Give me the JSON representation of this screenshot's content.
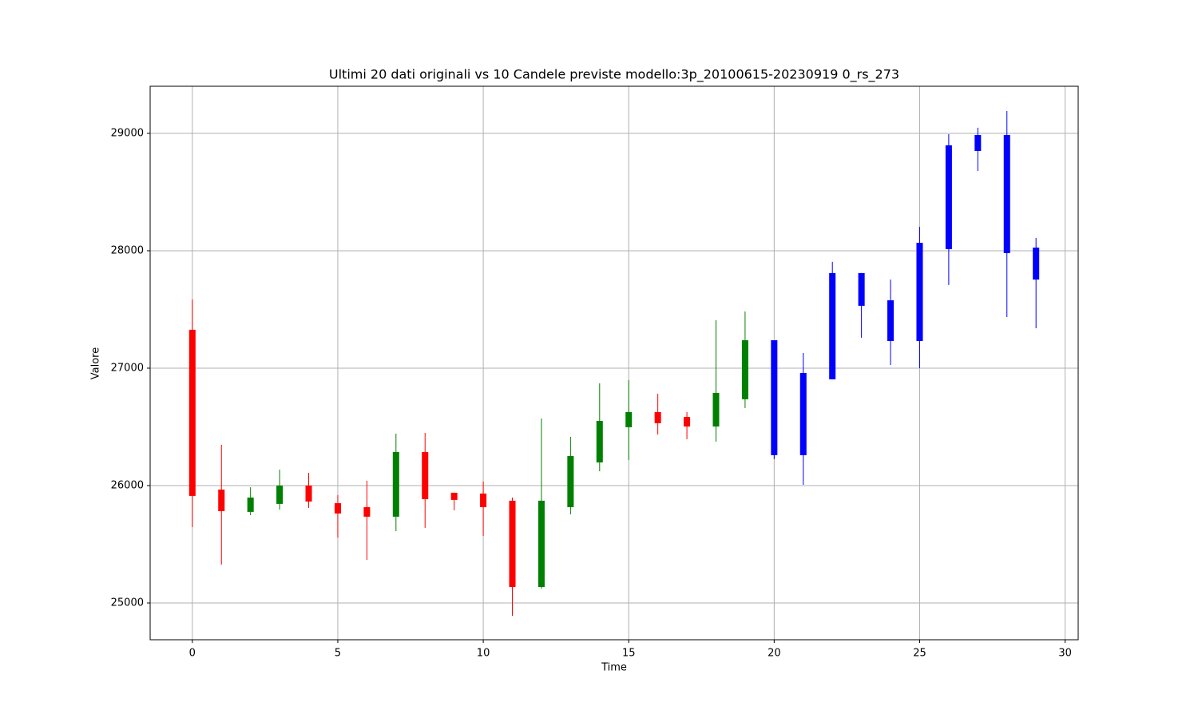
{
  "chart_data": {
    "type": "candlestick",
    "title": "Ultimi 20 dati originali vs 10 Candele previste modello:3p_20100615-20230919 0_rs_273",
    "x_label": "Time",
    "y_label": "Valore",
    "xlim": [
      -1.45,
      30.45
    ],
    "xticks": [
      0,
      5,
      10,
      15,
      20,
      25,
      30
    ],
    "ylim": [
      24687,
      29401
    ],
    "yticks": [
      25000,
      26000,
      27000,
      28000,
      29000
    ],
    "grid": true,
    "series": [
      {
        "up_color": "#008000",
        "down_color": "#ff0000",
        "x": [
          0,
          1,
          2,
          3,
          4,
          5,
          6,
          7,
          8,
          9,
          10,
          11,
          12,
          13,
          14,
          15,
          16,
          17,
          18,
          19
        ],
        "open": [
          27327,
          25966,
          25776,
          25844,
          26000,
          25850,
          25816,
          25735,
          26286,
          25939,
          25932,
          25871,
          25136,
          25816,
          26197,
          26497,
          26626,
          26585,
          26503,
          26735
        ],
        "high": [
          27585,
          26347,
          25986,
          26136,
          26109,
          25918,
          26041,
          26442,
          26449,
          25939,
          26034,
          25898,
          26571,
          26415,
          26871,
          26898,
          26782,
          26626,
          27408,
          27483
        ],
        "low": [
          25646,
          25327,
          25748,
          25796,
          25810,
          25558,
          25367,
          25612,
          25640,
          25789,
          25571,
          24891,
          25122,
          25755,
          26122,
          26218,
          26435,
          26395,
          26374,
          26660
        ],
        "close": [
          25912,
          25782,
          25898,
          26000,
          25864,
          25762,
          25735,
          26286,
          25884,
          25878,
          25816,
          25136,
          25871,
          26252,
          26551,
          26626,
          26531,
          26503,
          26789,
          27238
        ]
      },
      {
        "color": "#0000ff",
        "x": [
          20,
          21,
          22,
          23,
          24,
          25,
          26,
          27,
          28,
          29
        ],
        "open": [
          27238,
          26959,
          27810,
          27810,
          27578,
          28068,
          28898,
          28986,
          28986,
          28027
        ],
        "high": [
          27238,
          27129,
          27905,
          27810,
          27755,
          28204,
          28993,
          29048,
          29190,
          28109
        ],
        "low": [
          26225,
          26007,
          26905,
          27259,
          27027,
          27000,
          27708,
          28680,
          27435,
          27340
        ],
        "close": [
          26259,
          26259,
          26905,
          27531,
          27231,
          27231,
          28014,
          28850,
          27980,
          27755
        ]
      }
    ]
  }
}
